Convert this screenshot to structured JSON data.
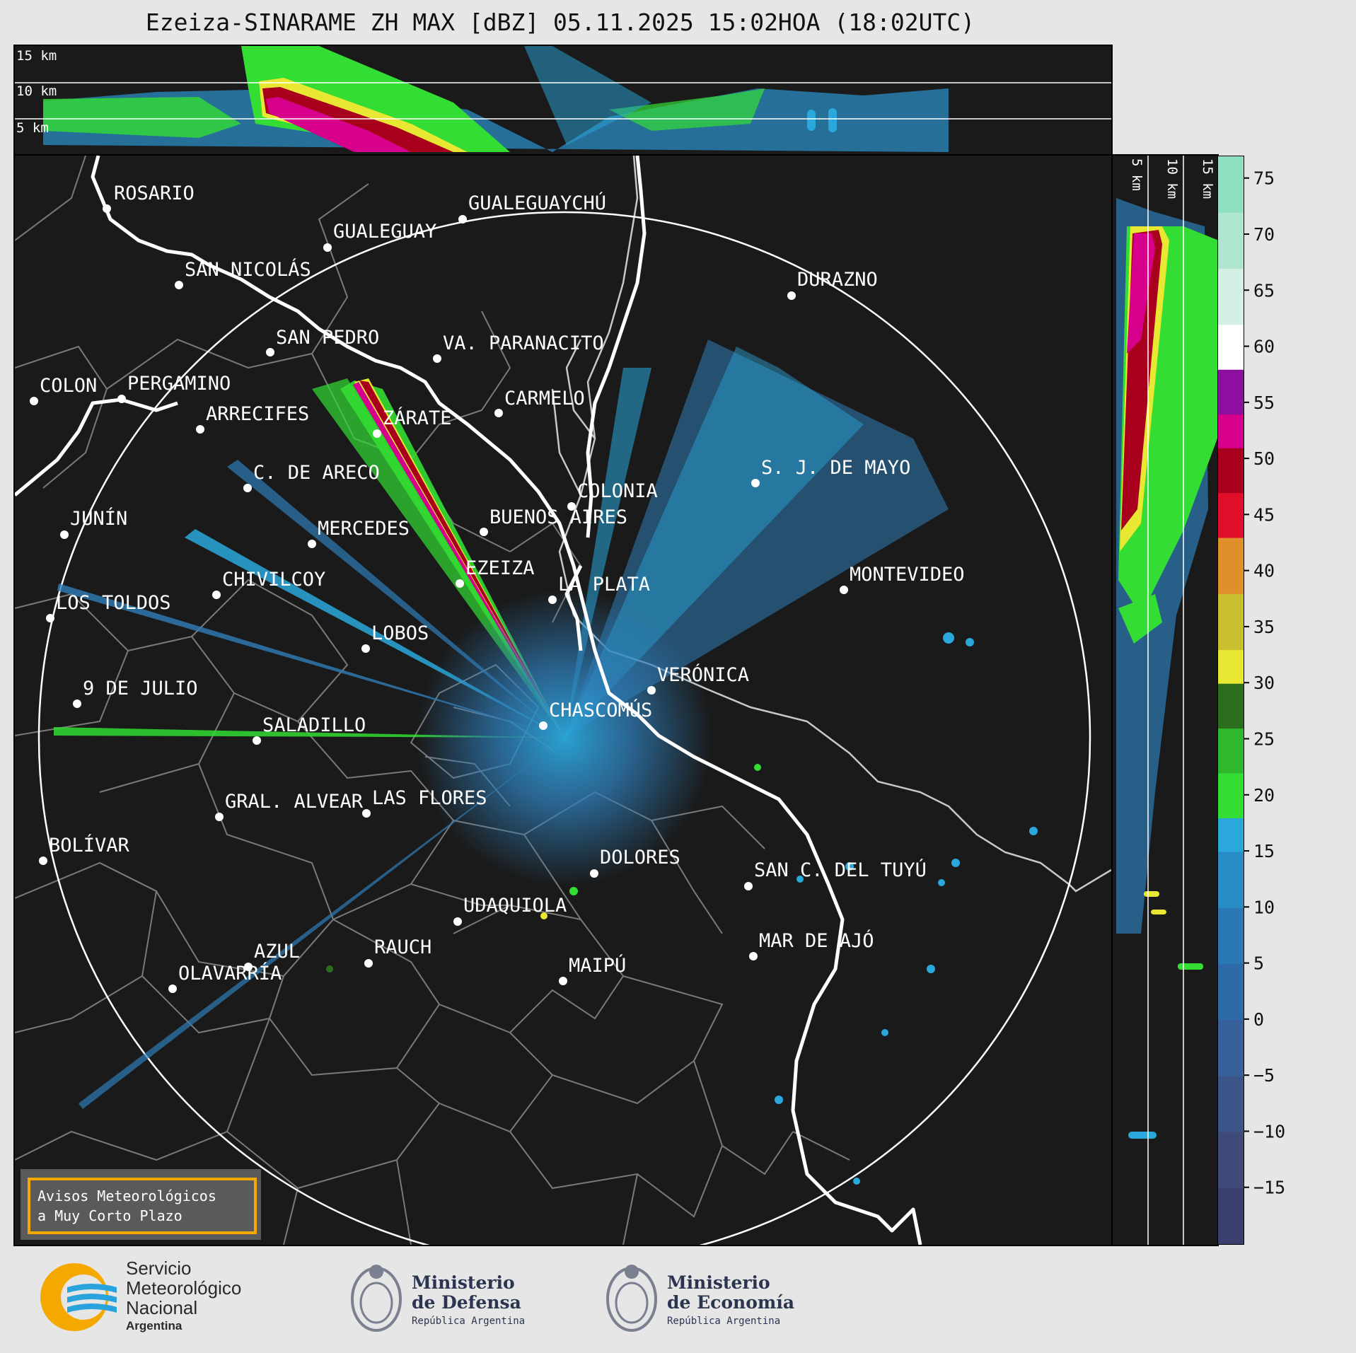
{
  "title": "Ezeiza-SINARAME ZH MAX [dBZ] 05.11.2025 15:02HOA (18:02UTC)",
  "height_labels_top": [
    "15 km",
    "10 km",
    "5 km"
  ],
  "height_labels_side": [
    "5 km",
    "10 km",
    "15 km"
  ],
  "colorbar": {
    "ticks": [
      "75",
      "70",
      "65",
      "60",
      "55",
      "50",
      "45",
      "40",
      "35",
      "30",
      "25",
      "20",
      "15",
      "10",
      "5",
      "0",
      "−5",
      "−10",
      "−15"
    ],
    "tick_values": [
      75,
      70,
      65,
      60,
      55,
      50,
      45,
      40,
      35,
      30,
      25,
      20,
      15,
      10,
      5,
      0,
      -5,
      -10,
      -15
    ],
    "range": [
      -20,
      77
    ],
    "colors": {
      "low": "#3b3f6e",
      "blue_mid": "#2f7db8",
      "cyan": "#2aa8dc",
      "green": "#33dd33",
      "dark_green": "#2a6e1e",
      "yellow": "#e8e832",
      "orange": "#e0902a",
      "red": "#e0102a",
      "dark_red": "#a8001c",
      "magenta": "#d6008c",
      "purple": "#8c0fa0",
      "white": "#ffffff",
      "mint": "#8fe0c0"
    }
  },
  "cities": [
    {
      "name": "ROSARIO"
    },
    {
      "name": "GUALEGUAYCHÚ"
    },
    {
      "name": "GUALEGUAY"
    },
    {
      "name": "SAN NICOLÁS"
    },
    {
      "name": "DURAZNO"
    },
    {
      "name": "SAN PEDRO"
    },
    {
      "name": "VA. PARANACITO"
    },
    {
      "name": "COLON"
    },
    {
      "name": "PERGAMINO"
    },
    {
      "name": "CARMELO"
    },
    {
      "name": "ARRECIFES"
    },
    {
      "name": "ZÁRATE"
    },
    {
      "name": "S. J. DE MAYO"
    },
    {
      "name": "C. DE ARECO"
    },
    {
      "name": "COLONIA"
    },
    {
      "name": "JUNÍN"
    },
    {
      "name": "BUENOS AIRES"
    },
    {
      "name": "MERCEDES"
    },
    {
      "name": "MONTEVIDEO"
    },
    {
      "name": "EZEIZA"
    },
    {
      "name": "CHIVILCOY"
    },
    {
      "name": "LA PLATA"
    },
    {
      "name": "LOS TOLDOS"
    },
    {
      "name": "LOBOS"
    },
    {
      "name": "VERÓNICA"
    },
    {
      "name": "9 DE JULIO"
    },
    {
      "name": "CHASCOMÚS"
    },
    {
      "name": "SALADILLO"
    },
    {
      "name": "GRAL. ALVEAR"
    },
    {
      "name": "LAS FLORES"
    },
    {
      "name": "BOLÍVAR"
    },
    {
      "name": "DOLORES"
    },
    {
      "name": "SAN C. DEL TUYÚ"
    },
    {
      "name": "UDAQUIOLA"
    },
    {
      "name": "MAR DE AJÓ"
    },
    {
      "name": "AZUL"
    },
    {
      "name": "RAUCH"
    },
    {
      "name": "MAIPÚ"
    },
    {
      "name": "OLAVARRÍA"
    }
  ],
  "warning_box": {
    "line1": "Avisos Meteorológicos",
    "line2": "a Muy Corto Plazo"
  },
  "logos": {
    "smn": {
      "line1": "Servicio",
      "line2": "Meteorológico",
      "line3": "Nacional",
      "line4": "Argentina"
    },
    "defensa": {
      "line1": "Ministerio",
      "line2": "de Defensa",
      "line3": "República Argentina"
    },
    "economia": {
      "line1": "Ministerio",
      "line2": "de Economía",
      "line3": "República Argentina"
    }
  }
}
